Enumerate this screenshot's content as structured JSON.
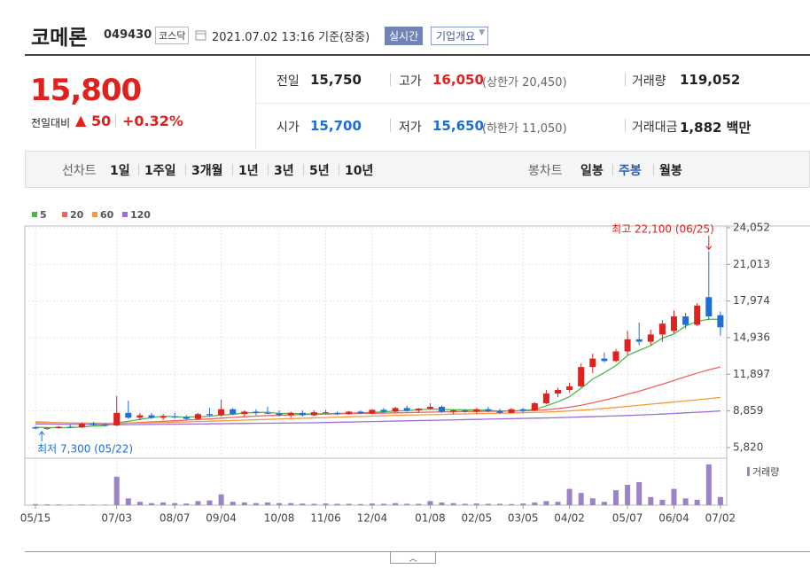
{
  "header": {
    "name": "코메론",
    "code": "049430",
    "market": "코스닥",
    "timestamp": "2021.07.02 13:16 기준(장중)",
    "realtime": "실시간",
    "company": "기업개요"
  },
  "quote": {
    "price": "15,800",
    "change_label": "전일대비",
    "change": "50",
    "change_pct": "+0.32%",
    "cells": [
      {
        "label": "전일",
        "value": "15,750",
        "color": "#222"
      },
      {
        "label": "고가",
        "value": "16,050",
        "note": "(상한가 20,450)",
        "color": "#e0211d"
      },
      {
        "label": "거래량",
        "value": "119,052",
        "color": "#222"
      },
      {
        "label": "시가",
        "value": "15,700",
        "color": "#1f6ed4"
      },
      {
        "label": "저가",
        "value": "15,650",
        "note": "(하한가 11,050)",
        "color": "#1f6ed4"
      },
      {
        "label": "거래대금",
        "value": "1,882 백만",
        "color": "#222"
      }
    ]
  },
  "line_tabs": {
    "label": "선차트",
    "items": [
      "1일",
      "1주일",
      "3개월",
      "1년",
      "3년",
      "5년",
      "10년"
    ]
  },
  "candle_tabs": {
    "label": "봉차트",
    "items": [
      "일봉",
      "주봉",
      "월봉"
    ],
    "active": 1
  },
  "chart_data": {
    "type": "candlestick",
    "up_color": "#e0211d",
    "down_color": "#1f6ed4",
    "grid": true,
    "categories": [
      "05/15",
      null,
      null,
      null,
      null,
      null,
      null,
      "07/03",
      null,
      null,
      null,
      null,
      "08/07",
      null,
      null,
      null,
      "09/04",
      null,
      null,
      null,
      null,
      "10/08",
      null,
      null,
      null,
      "11/06",
      null,
      null,
      null,
      "12/04",
      null,
      null,
      null,
      null,
      "01/08",
      null,
      null,
      null,
      "02/05",
      null,
      null,
      null,
      "03/05",
      null,
      null,
      null,
      "04/02",
      null,
      null,
      null,
      null,
      "05/07",
      null,
      null,
      null,
      "06/04",
      null,
      null,
      null,
      "07/02"
    ],
    "open": [
      7500,
      7400,
      7450,
      7550,
      7500,
      7800,
      7700,
      7650,
      8700,
      8300,
      8500,
      8300,
      8400,
      8350,
      8200,
      8600,
      8500,
      9000,
      8600,
      8800,
      8700,
      8650,
      8500,
      8700,
      8500,
      8750,
      8700,
      8600,
      8800,
      8650,
      8950,
      8800,
      9100,
      8900,
      9050,
      9200,
      8800,
      8900,
      8800,
      9000,
      8850,
      8700,
      9000,
      8900,
      9500,
      10300,
      10600,
      10900,
      12500,
      13200,
      13000,
      13800,
      14800,
      14600,
      15200,
      15500,
      16700,
      16000,
      18300,
      16800
    ],
    "high": [
      7600,
      7500,
      7600,
      7700,
      7900,
      7950,
      7850,
      10100,
      9700,
      8700,
      8700,
      8600,
      8700,
      8500,
      8700,
      9100,
      9800,
      9100,
      8900,
      9000,
      9200,
      8900,
      8800,
      8900,
      8900,
      8950,
      8800,
      8850,
      8900,
      9000,
      9100,
      9200,
      9300,
      9100,
      9500,
      9300,
      9000,
      9000,
      9100,
      9200,
      9050,
      9100,
      9100,
      9600,
      10600,
      10800,
      11200,
      12800,
      13600,
      13700,
      14000,
      15500,
      16200,
      15600,
      16400,
      17200,
      17000,
      17800,
      22100,
      17100
    ],
    "low": [
      7350,
      7300,
      7400,
      7450,
      7450,
      7600,
      7550,
      7600,
      8200,
      8100,
      8200,
      8100,
      8200,
      8100,
      8150,
      8400,
      8400,
      8500,
      8400,
      8500,
      8600,
      8400,
      8300,
      8400,
      8450,
      8600,
      8500,
      8550,
      8600,
      8600,
      8700,
      8750,
      8800,
      8700,
      8950,
      8700,
      8600,
      8700,
      8650,
      8750,
      8600,
      8650,
      8700,
      8850,
      9400,
      10000,
      10400,
      10800,
      12000,
      12900,
      12900,
      13500,
      14300,
      14300,
      14600,
      15300,
      15700,
      15900,
      16400,
      15100
    ],
    "close": [
      7400,
      7450,
      7550,
      7500,
      7800,
      7700,
      7650,
      8700,
      8300,
      8500,
      8300,
      8400,
      8350,
      8200,
      8600,
      8500,
      9000,
      8600,
      8800,
      8700,
      8650,
      8500,
      8700,
      8500,
      8750,
      8700,
      8600,
      8800,
      8650,
      8950,
      8800,
      9100,
      8900,
      9050,
      9200,
      8800,
      8900,
      8800,
      9000,
      8850,
      8700,
      9000,
      8900,
      9500,
      10300,
      10600,
      10900,
      12500,
      13200,
      13000,
      13800,
      14800,
      14600,
      15200,
      16100,
      16700,
      16000,
      17600,
      16700,
      15800
    ],
    "series": [
      {
        "name": "5",
        "color": "#4cb84c",
        "values": [
          7500,
          7480,
          7470,
          7480,
          7540,
          7600,
          7640,
          7880,
          8000,
          8160,
          8300,
          8440,
          8370,
          8350,
          8370,
          8410,
          8520,
          8580,
          8700,
          8720,
          8750,
          8650,
          8660,
          8610,
          8620,
          8630,
          8650,
          8670,
          8700,
          8740,
          8780,
          8860,
          8880,
          8960,
          9010,
          8990,
          8950,
          8950,
          8940,
          8910,
          8850,
          8870,
          8890,
          8990,
          9280,
          9620,
          10040,
          10740,
          11500,
          12040,
          12620,
          13460,
          13880,
          14280,
          14900,
          15240,
          15900,
          16300,
          16460,
          16460
        ]
      },
      {
        "name": "20",
        "color": "#ef6262",
        "values": [
          7950,
          7920,
          7890,
          7860,
          7840,
          7820,
          7800,
          7820,
          7860,
          7900,
          7950,
          8000,
          8050,
          8100,
          8150,
          8200,
          8260,
          8320,
          8380,
          8430,
          8470,
          8500,
          8530,
          8560,
          8580,
          8600,
          8620,
          8640,
          8650,
          8660,
          8680,
          8700,
          8720,
          8740,
          8760,
          8780,
          8800,
          8810,
          8820,
          8830,
          8840,
          8850,
          8860,
          8900,
          8960,
          9050,
          9170,
          9330,
          9530,
          9750,
          9980,
          10250,
          10500,
          10780,
          11080,
          11380,
          11700,
          12000,
          12280,
          12500
        ]
      },
      {
        "name": "60",
        "color": "#f59a3a",
        "values": [
          7900,
          7890,
          7880,
          7870,
          7860,
          7850,
          7840,
          7840,
          7850,
          7860,
          7880,
          7900,
          7920,
          7950,
          7980,
          8010,
          8040,
          8070,
          8100,
          8130,
          8160,
          8190,
          8220,
          8250,
          8280,
          8310,
          8340,
          8370,
          8400,
          8430,
          8460,
          8490,
          8510,
          8530,
          8550,
          8570,
          8590,
          8610,
          8630,
          8650,
          8670,
          8690,
          8710,
          8740,
          8770,
          8810,
          8860,
          8920,
          8990,
          9070,
          9150,
          9240,
          9330,
          9420,
          9510,
          9600,
          9690,
          9780,
          9880,
          9980
        ]
      },
      {
        "name": "120",
        "color": "#9b6fd6",
        "values": [
          7780,
          7770,
          7760,
          7750,
          7740,
          7730,
          7720,
          7720,
          7720,
          7730,
          7740,
          7750,
          7760,
          7770,
          7780,
          7790,
          7800,
          7810,
          7820,
          7830,
          7840,
          7850,
          7860,
          7870,
          7880,
          7900,
          7920,
          7940,
          7960,
          7980,
          8000,
          8020,
          8040,
          8060,
          8080,
          8100,
          8120,
          8140,
          8160,
          8180,
          8200,
          8220,
          8240,
          8260,
          8280,
          8300,
          8330,
          8360,
          8390,
          8420,
          8450,
          8480,
          8520,
          8560,
          8600,
          8650,
          8700,
          8750,
          8800,
          8860
        ]
      }
    ],
    "volume": {
      "name": "거래량",
      "color": "#9b82c9",
      "values": [
        80000,
        60000,
        50000,
        40000,
        50000,
        40000,
        40000,
        2100000,
        500000,
        250000,
        150000,
        200000,
        150000,
        120000,
        300000,
        350000,
        800000,
        250000,
        200000,
        150000,
        200000,
        150000,
        150000,
        120000,
        100000,
        120000,
        100000,
        100000,
        80000,
        120000,
        100000,
        150000,
        100000,
        100000,
        300000,
        200000,
        150000,
        100000,
        120000,
        100000,
        100000,
        80000,
        120000,
        200000,
        300000,
        250000,
        1200000,
        900000,
        500000,
        250000,
        1100000,
        1500000,
        1700000,
        600000,
        400000,
        1200000,
        500000,
        400000,
        3000000,
        600000
      ]
    },
    "ylim": [
      5820,
      24052
    ],
    "yticks": [
      {
        "value": 5820,
        "label": "5,820"
      },
      {
        "value": 8859,
        "label": "8,859"
      },
      {
        "value": 11897,
        "label": "11,897"
      },
      {
        "value": 14936,
        "label": "14,936"
      },
      {
        "value": 17974,
        "label": "17,974"
      },
      {
        "value": 21013,
        "label": "21,013"
      },
      {
        "value": 24052,
        "label": "24,052"
      }
    ],
    "annotations": [
      {
        "text": "최고 22,100 (06/25)",
        "color": "#e0211d"
      },
      {
        "text": "최저 7,300 (05/22)",
        "color": "#1f6ed4"
      }
    ]
  }
}
